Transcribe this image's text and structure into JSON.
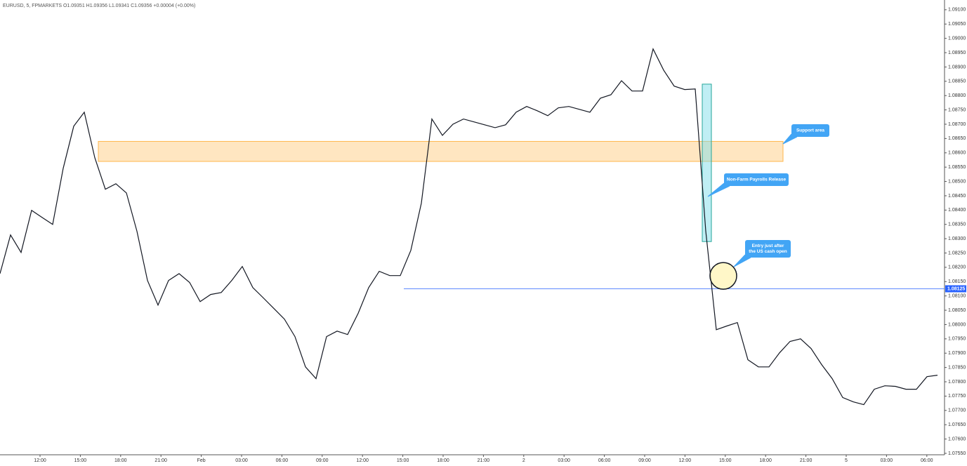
{
  "chart_data": {
    "type": "line",
    "header": "EURUSD, 5, FPMARKETS  O1.09351  H1.09356  L1.09341  C1.09356  +0.00004 (+0.00%)",
    "xtick_labels": [
      "12:00",
      "15:00",
      "18:00",
      "21:00",
      "Feb",
      "03:00",
      "06:00",
      "09:00",
      "12:00",
      "15:00",
      "18:00",
      "21:00",
      "2",
      "03:00",
      "06:00",
      "09:00",
      "12:00",
      "15:00",
      "18:00",
      "21:00",
      "5",
      "03:00",
      "06:00"
    ],
    "series": [
      {
        "name": "EURUSD",
        "color": "#131722",
        "values": [
          1.08178,
          1.08313,
          1.08252,
          1.08399,
          1.08374,
          1.0835,
          1.08546,
          1.08693,
          1.08742,
          1.08583,
          1.08473,
          1.08492,
          1.0846,
          1.08326,
          1.08154,
          1.08068,
          1.08154,
          1.08178,
          1.08147,
          1.0808,
          1.08105,
          1.08112,
          1.08154,
          1.08203,
          1.08129,
          1.08093,
          1.08056,
          1.08019,
          1.07958,
          1.07852,
          1.07811,
          1.07958,
          1.07977,
          1.07965,
          1.08039,
          1.08129,
          1.08186,
          1.08171,
          1.08171,
          1.08259,
          1.08424,
          1.08718,
          1.08661,
          1.087,
          1.08718,
          1.08708,
          1.08698,
          1.08688,
          1.08698,
          1.08742,
          1.08762,
          1.08747,
          1.0873,
          1.08757,
          1.08762,
          1.08752,
          1.08742,
          1.08791,
          1.08803,
          1.08852,
          1.08816,
          1.08816,
          1.08963,
          1.08889,
          1.08833,
          1.08821,
          1.08823,
          1.08326,
          1.07982,
          1.07995,
          1.08007,
          1.07877,
          1.07852,
          1.07852,
          1.07901,
          1.07941,
          1.0795,
          1.07916,
          1.0786,
          1.07811,
          1.07745,
          1.0773,
          1.0772,
          1.07774,
          1.07786,
          1.07784,
          1.07774,
          1.07774,
          1.07818,
          1.07823
        ]
      }
    ],
    "price_line": {
      "value": 1.08125,
      "color": "#2962ff"
    },
    "support_zone": {
      "ylim": [
        1.0857,
        1.0864
      ],
      "label": "Support area",
      "color": "#ffb74d"
    },
    "nfp_zone": {
      "ylim": [
        1.0829,
        1.0884
      ],
      "label": "Non-Farm Payrolls Release",
      "color": "#80deea"
    },
    "entry": {
      "value": 1.0817,
      "label": [
        "Entry just after",
        "the US cash open"
      ]
    },
    "ylim": [
      1.07545,
      1.09134
    ],
    "yticks": [
      {
        "value": 1.0755,
        "label": "1.07550"
      },
      {
        "value": 1.076,
        "label": "1.07600"
      },
      {
        "value": 1.0765,
        "label": "1.07650"
      },
      {
        "value": 1.077,
        "label": "1.07700"
      },
      {
        "value": 1.0775,
        "label": "1.07750"
      },
      {
        "value": 1.078,
        "label": "1.07800"
      },
      {
        "value": 1.0785,
        "label": "1.07850"
      },
      {
        "value": 1.079,
        "label": "1.07900"
      },
      {
        "value": 1.0795,
        "label": "1.07950"
      },
      {
        "value": 1.08,
        "label": "1.08000"
      },
      {
        "value": 1.0805,
        "label": "1.08050"
      },
      {
        "value": 1.081,
        "label": "1.08100"
      },
      {
        "value": 1.0815,
        "label": "1.08150"
      },
      {
        "value": 1.082,
        "label": "1.08200"
      },
      {
        "value": 1.0825,
        "label": "1.08250"
      },
      {
        "value": 1.083,
        "label": "1.08300"
      },
      {
        "value": 1.0835,
        "label": "1.08350"
      },
      {
        "value": 1.084,
        "label": "1.08400"
      },
      {
        "value": 1.0845,
        "label": "1.08450"
      },
      {
        "value": 1.085,
        "label": "1.08500"
      },
      {
        "value": 1.0855,
        "label": "1.08550"
      },
      {
        "value": 1.086,
        "label": "1.08600"
      },
      {
        "value": 1.0865,
        "label": "1.08650"
      },
      {
        "value": 1.087,
        "label": "1.08700"
      },
      {
        "value": 1.0875,
        "label": "1.08750"
      },
      {
        "value": 1.088,
        "label": "1.08800"
      },
      {
        "value": 1.0885,
        "label": "1.08850"
      },
      {
        "value": 1.089,
        "label": "1.08900"
      },
      {
        "value": 1.0895,
        "label": "1.08950"
      },
      {
        "value": 1.09,
        "label": "1.09000"
      },
      {
        "value": 1.0905,
        "label": "1.09050"
      },
      {
        "value": 1.091,
        "label": "1.09100"
      }
    ]
  }
}
